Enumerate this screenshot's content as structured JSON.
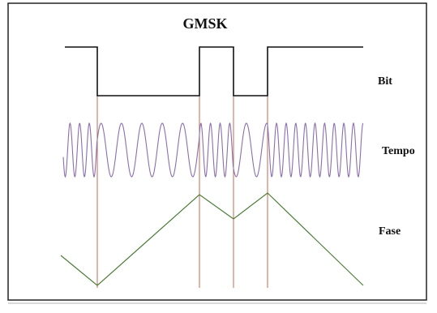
{
  "title": "GMSK",
  "labels": {
    "bit": "Bit",
    "tempo": "Tempo",
    "fase": "Fase"
  },
  "bit_sequence": [
    1,
    0,
    0,
    1,
    0,
    1,
    1
  ],
  "colors": {
    "frame": "#222222",
    "bit_waveform": "#111111",
    "carrier": "#8a6fb0",
    "transition_marker": "#c46a50",
    "phase_curve": "#4f7d3a"
  }
}
